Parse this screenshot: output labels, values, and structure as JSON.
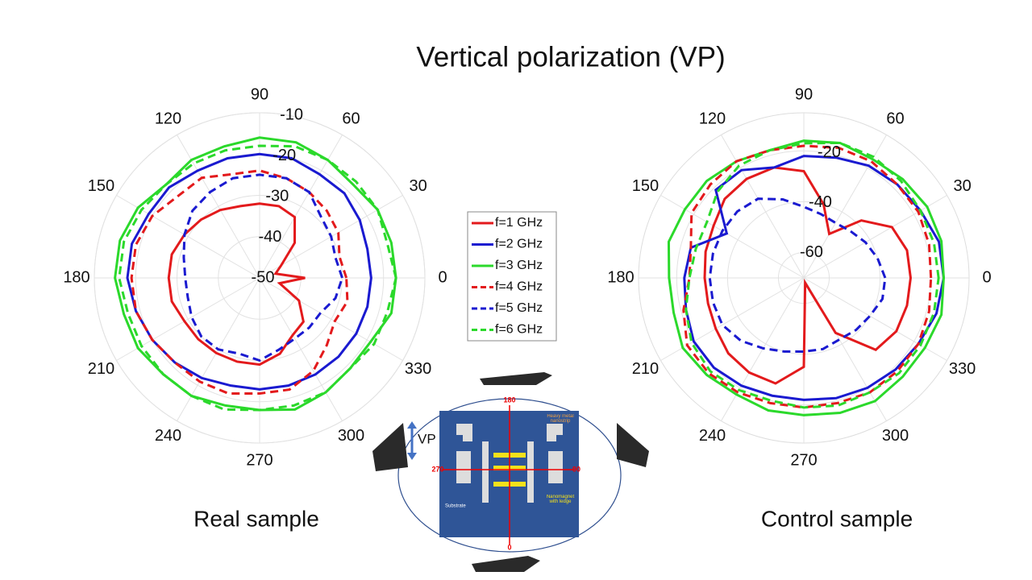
{
  "title": "Vertical polarization (VP)",
  "chart_data": [
    {
      "type": "polar",
      "title": "Real sample",
      "theta": [
        0,
        15,
        30,
        45,
        60,
        75,
        90,
        105,
        120,
        135,
        150,
        165,
        180,
        195,
        210,
        225,
        240,
        255,
        270,
        285,
        300,
        315,
        330,
        345
      ],
      "thetaticks": [
        0,
        30,
        60,
        90,
        120,
        150,
        180,
        210,
        240,
        270,
        300,
        330
      ],
      "rlim": [
        -50,
        -10
      ],
      "rticks": [
        -50,
        -40,
        -30,
        -20,
        -10
      ],
      "series": [
        {
          "name": "f=1 GHz",
          "color": "#e31a1c",
          "dash": false,
          "values": [
            -39,
            -46,
            -44,
            -38,
            -33,
            -32,
            -32,
            -32,
            -31,
            -30,
            -29,
            -28,
            -28,
            -28,
            -29,
            -29,
            -29,
            -29,
            -29,
            -31,
            -34,
            -35,
            -39,
            -45
          ]
        },
        {
          "name": "f=2 GHz",
          "color": "#1a1ad0",
          "dash": false,
          "values": [
            -23,
            -23,
            -22,
            -21,
            -21,
            -20,
            -20,
            -20,
            -20,
            -19,
            -19,
            -18,
            -18,
            -19,
            -20,
            -21,
            -22,
            -23,
            -23,
            -23,
            -23,
            -23,
            -23,
            -23
          ]
        },
        {
          "name": "f=3 GHz",
          "color": "#2bd92b",
          "dash": false,
          "values": [
            -17,
            -17,
            -17,
            -18,
            -17,
            -16,
            -16,
            -17,
            -17,
            -18,
            -16,
            -15,
            -15,
            -16,
            -16,
            -17,
            -17,
            -18,
            -18,
            -17,
            -18,
            -19,
            -19,
            -17
          ]
        },
        {
          "name": "f=4 GHz",
          "color": "#e31a1c",
          "dash": true,
          "values": [
            -29,
            -30,
            -28,
            -27,
            -26,
            -25,
            -24,
            -24,
            -22,
            -22,
            -20,
            -19,
            -19,
            -19,
            -20,
            -21,
            -21,
            -21,
            -22,
            -22,
            -24,
            -27,
            -29,
            -28
          ]
        },
        {
          "name": "f=5 GHz",
          "color": "#1a1ad0",
          "dash": true,
          "values": [
            -30,
            -31,
            -30,
            -29,
            -26,
            -25,
            -25,
            -25,
            -26,
            -27,
            -29,
            -31,
            -32,
            -32,
            -31,
            -30,
            -30,
            -31,
            -30,
            -32,
            -33,
            -33,
            -33,
            -31
          ]
        },
        {
          "name": "f=6 GHz",
          "color": "#2bd92b",
          "dash": true,
          "values": [
            -17,
            -18,
            -17,
            -17,
            -17,
            -17,
            -18,
            -18,
            -18,
            -18,
            -17,
            -16,
            -16,
            -17,
            -17,
            -17,
            -17,
            -17,
            -18,
            -18,
            -18,
            -19,
            -18,
            -18
          ]
        }
      ]
    },
    {
      "type": "polar",
      "title": "Control sample",
      "theta": [
        0,
        15,
        30,
        45,
        60,
        75,
        90,
        105,
        120,
        135,
        150,
        165,
        180,
        195,
        210,
        225,
        240,
        255,
        270,
        285,
        300,
        315,
        330,
        345
      ],
      "thetaticks": [
        0,
        30,
        60,
        90,
        120,
        150,
        180,
        210,
        240,
        270,
        300,
        330
      ],
      "rlim": [
        -70,
        -5
      ],
      "rticks": [
        -60,
        -40,
        -20
      ],
      "series": [
        {
          "color": "#e31a1c",
          "dash": false,
          "values": [
            -28,
            -28,
            -30,
            -38,
            -50,
            -40,
            -28,
            -25,
            -25,
            -26,
            -29,
            -30,
            -31,
            -31,
            -30,
            -28,
            -27,
            -27,
            -35,
            -68,
            -45,
            -30,
            -28,
            -28
          ]
        },
        {
          "color": "#1a1ad0",
          "dash": false,
          "values": [
            -15,
            -15,
            -17,
            -18,
            -19,
            -21,
            -22,
            -25,
            -21,
            -21,
            -35,
            -24,
            -23,
            -22,
            -20,
            -20,
            -21,
            -22,
            -22,
            -21,
            -20,
            -19,
            -18,
            -16
          ]
        },
        {
          "color": "#2bd92b",
          "dash": false,
          "values": [
            -15,
            -14,
            -14,
            -15,
            -16,
            -15,
            -16,
            -18,
            -17,
            -16,
            -16,
            -15,
            -17,
            -17,
            -15,
            -16,
            -17,
            -16,
            -16,
            -15,
            -14,
            -15,
            -15,
            -14
          ]
        },
        {
          "color": "#e31a1c",
          "dash": true,
          "values": [
            -20,
            -19,
            -18,
            -18,
            -17,
            -17,
            -18,
            -18,
            -17,
            -18,
            -19,
            -24,
            -25,
            -21,
            -17,
            -17,
            -18,
            -19,
            -19,
            -19,
            -18,
            -18,
            -18,
            -19
          ]
        },
        {
          "color": "#1a1ad0",
          "dash": true,
          "values": [
            -38,
            -40,
            -42,
            -44,
            -45,
            -44,
            -42,
            -38,
            -34,
            -33,
            -33,
            -33,
            -33,
            -33,
            -33,
            -35,
            -38,
            -40,
            -41,
            -41,
            -42,
            -41,
            -40,
            -38
          ]
        },
        {
          "color": "#2bd92b",
          "dash": true,
          "values": [
            -17,
            -17,
            -17,
            -16,
            -15,
            -15,
            -17,
            -18,
            -19,
            -22,
            -26,
            -26,
            -25,
            -22,
            -19,
            -18,
            -19,
            -20,
            -19,
            -18,
            -18,
            -17,
            -17,
            -17
          ]
        }
      ]
    }
  ],
  "diagram": {
    "top": "180",
    "bottom": "0",
    "left": "270",
    "right": "90",
    "polarization": "VP",
    "strip": "Heavy metal nanostrip",
    "magnet": "Nanomagnet with ledge",
    "substrate": "Substrate"
  }
}
